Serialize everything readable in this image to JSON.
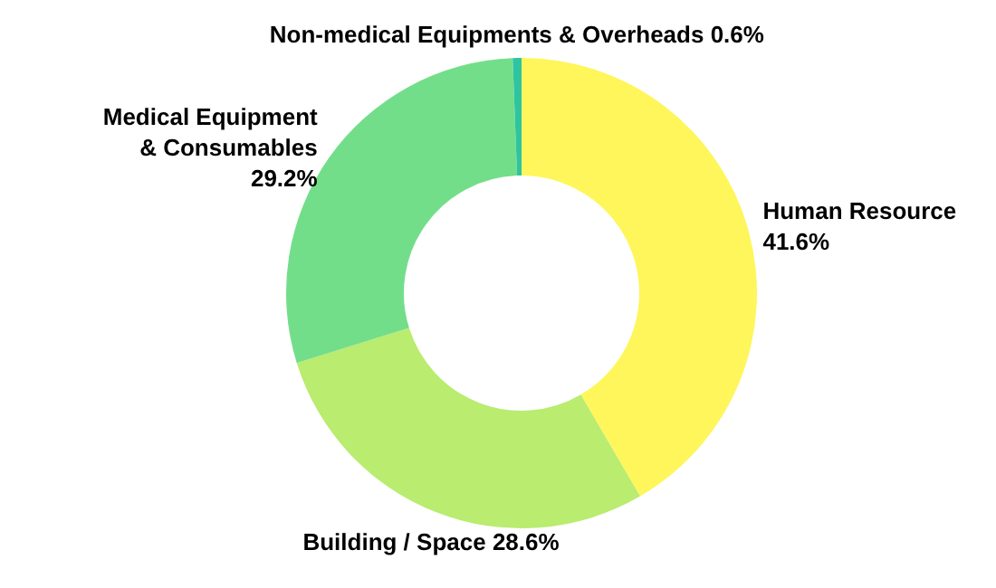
{
  "chart_data": {
    "type": "donut",
    "categories": [
      "Human Resource",
      "Building / Space",
      "Medical Equipment & Consumables",
      "Non-medical Equipments & Overheads"
    ],
    "values": [
      41.6,
      28.6,
      29.2,
      0.6
    ],
    "colors": [
      "#fef65b",
      "#b9ec6f",
      "#73de8a",
      "#2fc4a0"
    ],
    "value_labels": [
      "41.6%",
      "28.6%",
      "29.2%",
      "0.6%"
    ],
    "legend": false
  }
}
